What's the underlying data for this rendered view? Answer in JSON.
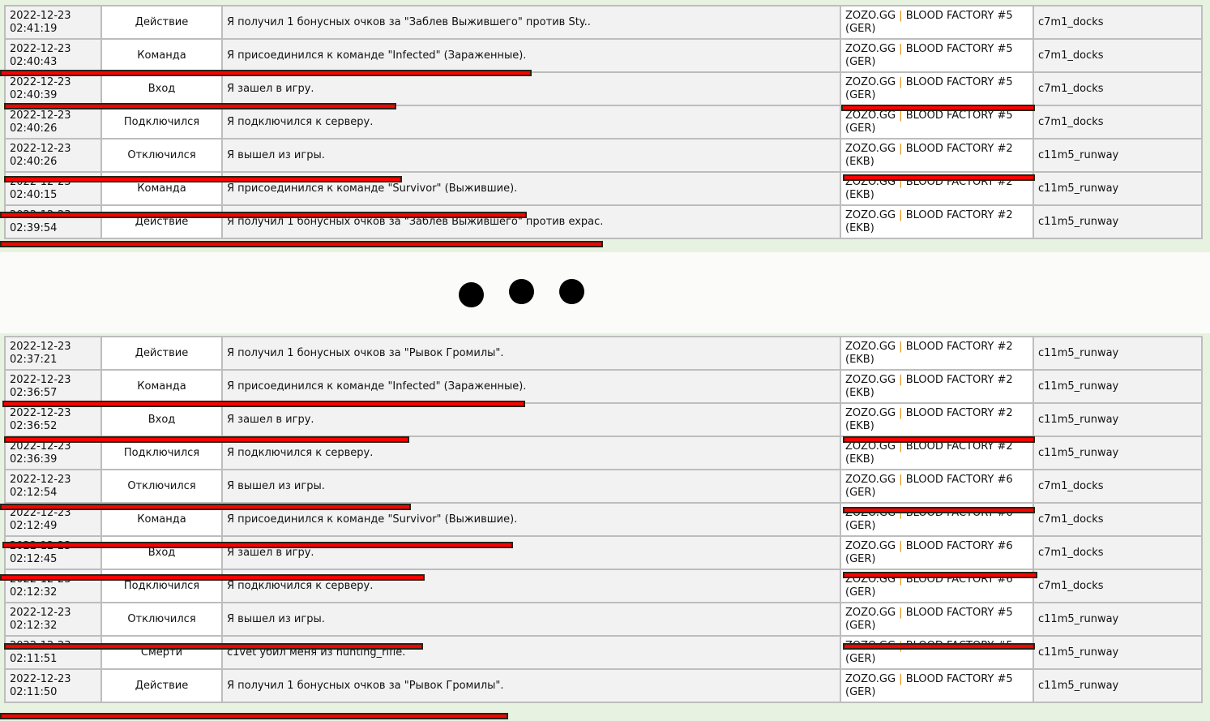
{
  "top_rows": [
    {
      "date": "2022-12-23",
      "time": "02:41:19",
      "type": "Действие",
      "message": "Я получил 1 бонусных очков за \"Заблев Выжившего\" против Sty..",
      "server": "ZOZO.GG | BLOOD FACTORY #5",
      "region": "(GER)",
      "map": "c7m1_docks"
    },
    {
      "date": "2022-12-23",
      "time": "02:40:43",
      "type": "Команда",
      "message": "Я присоединился к команде \"Infected\" (Зараженные).",
      "server": "ZOZO.GG | BLOOD FACTORY #5",
      "region": "(GER)",
      "map": "c7m1_docks"
    },
    {
      "date": "2022-12-23",
      "time": "02:40:39",
      "type": "Вход",
      "message": "Я зашел в игру.",
      "server": "ZOZO.GG | BLOOD FACTORY #5",
      "region": "(GER)",
      "map": "c7m1_docks"
    },
    {
      "date": "2022-12-23",
      "time": "02:40:26",
      "type": "Подключился",
      "message": "Я подключился к серверу.",
      "server": "ZOZO.GG | BLOOD FACTORY #5",
      "region": "(GER)",
      "map": "c7m1_docks"
    },
    {
      "date": "2022-12-23",
      "time": "02:40:26",
      "type": "Отключился",
      "message": "Я вышел из игры.",
      "server": "ZOZO.GG | BLOOD FACTORY #2",
      "region": "(EKB)",
      "map": "c11m5_runway"
    },
    {
      "date": "2022-12-23",
      "time": "02:40:15",
      "type": "Команда",
      "message": "Я присоединился к команде \"Survivor\" (Выжившие).",
      "server": "ZOZO.GG | BLOOD FACTORY #2",
      "region": "(EKB)",
      "map": "c11m5_runway"
    },
    {
      "date": "2022-12-23",
      "time": "02:39:54",
      "type": "Действие",
      "message": "Я получил 1 бонусных очков за \"Заблев Выжившего\" против expac.",
      "server": "ZOZO.GG | BLOOD FACTORY #2",
      "region": "(EKB)",
      "map": "c11m5_runway"
    }
  ],
  "bottom_rows": [
    {
      "date": "2022-12-23",
      "time": "02:37:21",
      "type": "Действие",
      "message": "Я получил 1 бонусных очков за \"Рывок Громилы\".",
      "server": "ZOZO.GG | BLOOD FACTORY #2",
      "region": "(EKB)",
      "map": "c11m5_runway"
    },
    {
      "date": "2022-12-23",
      "time": "02:36:57",
      "type": "Команда",
      "message": "Я присоединился к команде \"Infected\" (Зараженные).",
      "server": "ZOZO.GG | BLOOD FACTORY #2",
      "region": "(EKB)",
      "map": "c11m5_runway"
    },
    {
      "date": "2022-12-23",
      "time": "02:36:52",
      "type": "Вход",
      "message": "Я зашел в игру.",
      "server": "ZOZO.GG | BLOOD FACTORY #2",
      "region": "(EKB)",
      "map": "c11m5_runway"
    },
    {
      "date": "2022-12-23",
      "time": "02:36:39",
      "type": "Подключился",
      "message": "Я подключился к серверу.",
      "server": "ZOZO.GG | BLOOD FACTORY #2",
      "region": "(EKB)",
      "map": "c11m5_runway"
    },
    {
      "date": "2022-12-23",
      "time": "02:12:54",
      "type": "Отключился",
      "message": "Я вышел из игры.",
      "server": "ZOZO.GG | BLOOD FACTORY #6",
      "region": "(GER)",
      "map": "c7m1_docks"
    },
    {
      "date": "2022-12-23",
      "time": "02:12:49",
      "type": "Команда",
      "message": "Я присоединился к команде \"Survivor\" (Выжившие).",
      "server": "ZOZO.GG | BLOOD FACTORY #6",
      "region": "(GER)",
      "map": "c7m1_docks"
    },
    {
      "date": "2022-12-23",
      "time": "02:12:45",
      "type": "Вход",
      "message": "Я зашел в игру.",
      "server": "ZOZO.GG | BLOOD FACTORY #6",
      "region": "(GER)",
      "map": "c7m1_docks"
    },
    {
      "date": "2022-12-23",
      "time": "02:12:32",
      "type": "Подключился",
      "message": "Я подключился к серверу.",
      "server": "ZOZO.GG | BLOOD FACTORY #6",
      "region": "(GER)",
      "map": "c7m1_docks"
    },
    {
      "date": "2022-12-23",
      "time": "02:12:32",
      "type": "Отключился",
      "message": "Я вышел из игры.",
      "server": "ZOZO.GG | BLOOD FACTORY #5",
      "region": "(GER)",
      "map": "c11m5_runway"
    },
    {
      "date": "2022-12-23",
      "time": "02:11:51",
      "type": "Смерти",
      "message": "c1vet убил меня из hunting_rifle.",
      "server": "ZOZO.GG | BLOOD FACTORY #5",
      "region": "(GER)",
      "map": "c11m5_runway"
    },
    {
      "date": "2022-12-23",
      "time": "02:11:50",
      "type": "Действие",
      "message": "Я получил 1 бонусных очков за \"Рывок Громилы\".",
      "server": "ZOZO.GG | BLOOD FACTORY #5",
      "region": "(GER)",
      "map": "c11m5_runway"
    }
  ],
  "colors": {
    "highlight": "#ff0000",
    "border": "#bdbdbd",
    "server_separator": "#e08a00"
  }
}
